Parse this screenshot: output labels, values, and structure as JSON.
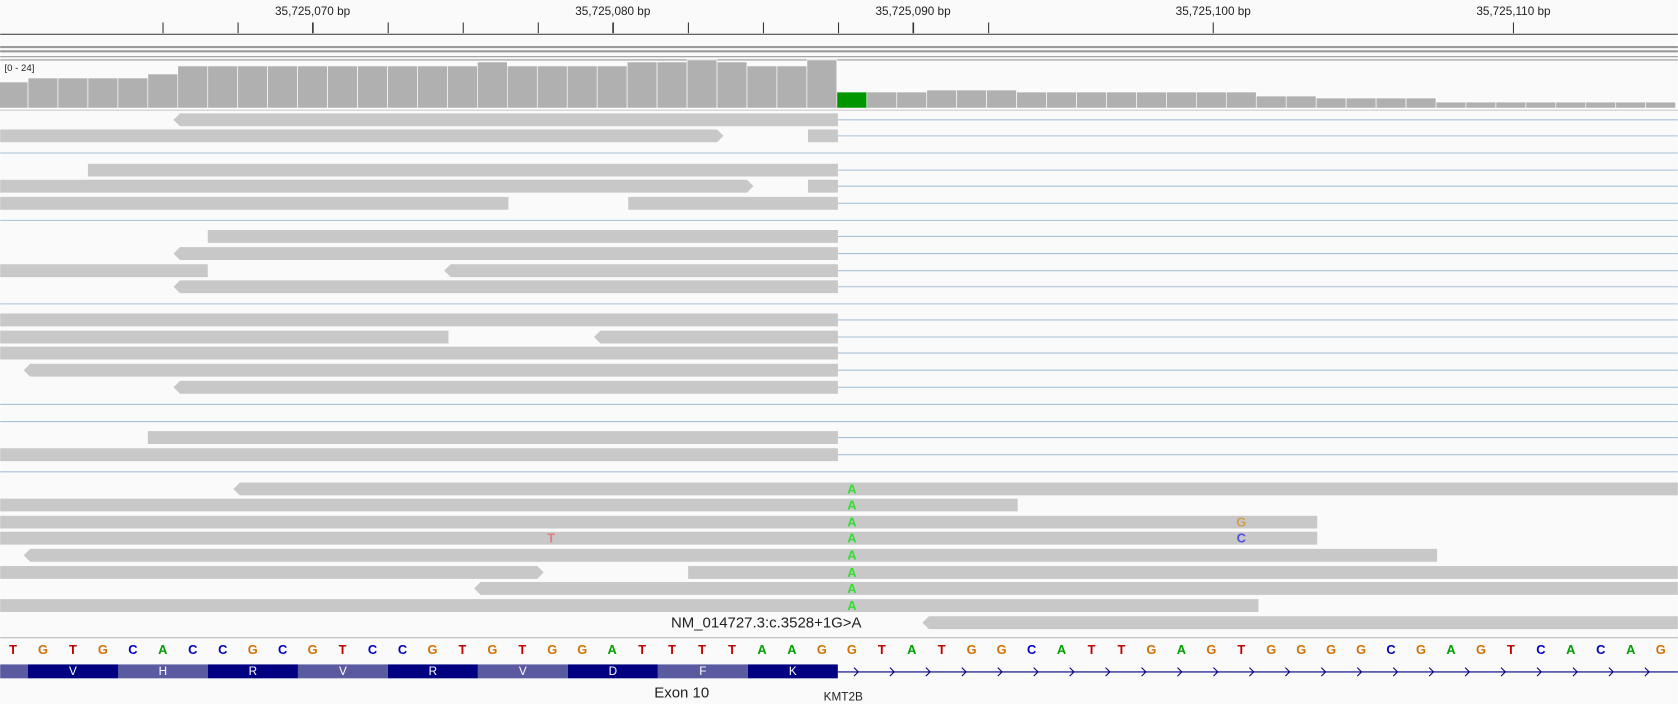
{
  "ruler": {
    "ticks": [
      {
        "value": 35725070,
        "label": "35,725,070 bp"
      },
      {
        "value": 35725080,
        "label": "35,725,080 bp"
      },
      {
        "value": 35725090,
        "label": "35,725,090 bp"
      },
      {
        "value": 35725100,
        "label": "35,725,100 bp"
      },
      {
        "value": 35725110,
        "label": "35,725,110 bp"
      }
    ]
  },
  "coverage": {
    "range": [
      0,
      24
    ],
    "range_label": "[0 - 24]",
    "color": "#b0b0b0",
    "highlight": {
      "index": 28,
      "color": "#009600"
    },
    "values": [
      13,
      15,
      15,
      15,
      15,
      17,
      21,
      21,
      21,
      21,
      21,
      21,
      21,
      21,
      21,
      21,
      23,
      21,
      21,
      21,
      21,
      23,
      23,
      24,
      23,
      21,
      21,
      24,
      8,
      8,
      8,
      9,
      9,
      9,
      8,
      8,
      8,
      8,
      8,
      8,
      8,
      8,
      6,
      6,
      5,
      5,
      5,
      5,
      3,
      3,
      3,
      3,
      3,
      3,
      3,
      3
    ]
  },
  "reads": {
    "mismatches": [
      "A",
      "A",
      "A",
      "A",
      "A",
      "A",
      "A",
      "A",
      "T",
      "G",
      "C"
    ],
    "variant_label": "NM_014727.3:c.3528+1G>A"
  },
  "reference": {
    "bases": [
      "T",
      "G",
      "T",
      "G",
      "C",
      "A",
      "C",
      "C",
      "G",
      "C",
      "G",
      "T",
      "C",
      "C",
      "G",
      "T",
      "G",
      "T",
      "G",
      "G",
      "A",
      "T",
      "T",
      "T",
      "T",
      "A",
      "A",
      "G",
      "G",
      "T",
      "A",
      "T",
      "G",
      "G",
      "C",
      "A",
      "T",
      "T",
      "G",
      "A",
      "G",
      "T",
      "G",
      "G",
      "G",
      "G",
      "C",
      "G",
      "A",
      "G",
      "T",
      "C",
      "A",
      "C",
      "A",
      "G"
    ]
  },
  "gene": {
    "amino_acids": [
      "V",
      "H",
      "R",
      "V",
      "R",
      "V",
      "D",
      "F",
      "K"
    ],
    "exon_label": "Exon 10",
    "name": "KMT2B"
  }
}
